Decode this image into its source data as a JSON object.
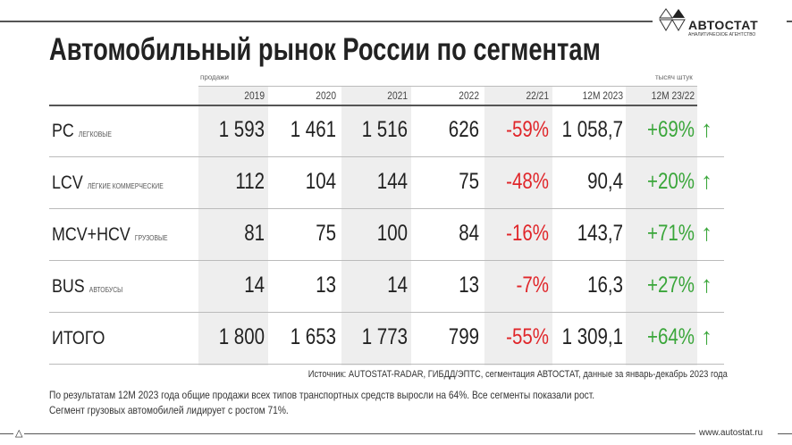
{
  "brand": {
    "name": "АВТОСТАТ",
    "subtitle": "АНАЛИТИЧЕСКОЕ АГЕНТСТВО",
    "url": "www.autostat.ru"
  },
  "title": "Автомобильный рынок России по сегментам",
  "caption_left": "продажи",
  "caption_right": "тысяч штук",
  "columns": [
    "2019",
    "2020",
    "2021",
    "2022",
    "22/21",
    "12M 2023",
    "12M 23/22"
  ],
  "rows": [
    {
      "label": "PC",
      "sublabel": "легковые",
      "values": [
        "1 593",
        "1 461",
        "1 516",
        "626",
        "-59%",
        "1 058,7",
        "+69%"
      ]
    },
    {
      "label": "LCV",
      "sublabel": "лёгкие коммерческие",
      "values": [
        "112",
        "104",
        "144",
        "75",
        "-48%",
        "90,4",
        "+20%"
      ]
    },
    {
      "label": "MCV+HCV",
      "sublabel": "грузовые",
      "values": [
        "81",
        "75",
        "100",
        "84",
        "-16%",
        "143,7",
        "+71%"
      ]
    },
    {
      "label": "BUS",
      "sublabel": "автобусы",
      "values": [
        "14",
        "13",
        "14",
        "13",
        "-7%",
        "16,3",
        "+27%"
      ]
    },
    {
      "label": "ИТОГО",
      "sublabel": "",
      "values": [
        "1 800",
        "1 653",
        "1 773",
        "799",
        "-55%",
        "1 309,1",
        "+64%"
      ]
    }
  ],
  "arrow": "↑",
  "colors": {
    "negative": "#e0262a",
    "positive": "#3aa63a"
  },
  "source": "Источник: AUTOSTAT-RADAR, ГИБДД/ЭПТС, сегментация АВТОСТАТ, данные за январь-декабрь 2023 года",
  "notes": [
    "По результатам 12М 2023 года общие продажи всех типов транспортных средств выросли на 64%. Все сегменты показали рост.",
    "Сегмент грузовых автомобилей лидирует с ростом 71%."
  ]
}
